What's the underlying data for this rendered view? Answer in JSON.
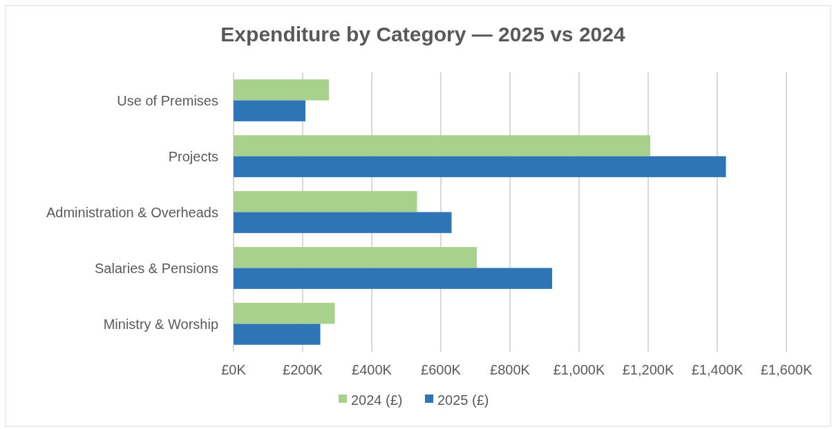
{
  "chart_data": {
    "type": "bar",
    "orientation": "horizontal",
    "title": "Expenditure by Category — 2025 vs 2024",
    "categories": [
      "Use of Premises",
      "Projects",
      "Administration & Overheads",
      "Salaries & Pensions",
      "Ministry & Worship"
    ],
    "series": [
      {
        "name": "2024 (£)",
        "color": "#a9d18e",
        "values": [
          276,
          1206,
          531,
          704,
          293
        ]
      },
      {
        "name": "2025 (£)",
        "color": "#2e75b6",
        "values": [
          208,
          1425,
          631,
          922,
          251
        ]
      }
    ],
    "xlim": [
      0,
      1600
    ],
    "xticks": [
      {
        "value": 0,
        "label": "£0K"
      },
      {
        "value": 200,
        "label": "£200K"
      },
      {
        "value": 400,
        "label": "£400K"
      },
      {
        "value": 600,
        "label": "£600K"
      },
      {
        "value": 800,
        "label": "£800K"
      },
      {
        "value": 1000,
        "label": "£1,000K"
      },
      {
        "value": 1200,
        "label": "£1,200K"
      },
      {
        "value": 1400,
        "label": "£1,400K"
      },
      {
        "value": 1600,
        "label": "£1,600K"
      }
    ],
    "grid": "x",
    "legend": "bottom"
  }
}
